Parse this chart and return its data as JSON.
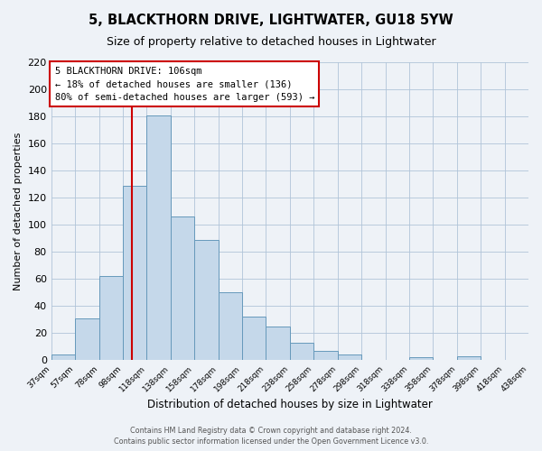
{
  "title": "5, BLACKTHORN DRIVE, LIGHTWATER, GU18 5YW",
  "subtitle": "Size of property relative to detached houses in Lightwater",
  "xlabel": "Distribution of detached houses by size in Lightwater",
  "ylabel": "Number of detached properties",
  "bar_heights": [
    4,
    31,
    62,
    129,
    181,
    106,
    89,
    50,
    32,
    25,
    13,
    7,
    4,
    0,
    0,
    2,
    0,
    3,
    0,
    0
  ],
  "tick_labels": [
    "37sqm",
    "57sqm",
    "78sqm",
    "98sqm",
    "118sqm",
    "138sqm",
    "158sqm",
    "178sqm",
    "198sqm",
    "218sqm",
    "238sqm",
    "258sqm",
    "278sqm",
    "298sqm",
    "318sqm",
    "338sqm",
    "358sqm",
    "378sqm",
    "398sqm",
    "418sqm",
    "438sqm"
  ],
  "n_bars": 20,
  "bar_color": "#c5d8ea",
  "bar_edge_color": "#6699bb",
  "vline_bar_index": 3.45,
  "vline_color": "#cc0000",
  "annotation_text": "5 BLACKTHORN DRIVE: 106sqm\n← 18% of detached houses are smaller (136)\n80% of semi-detached houses are larger (593) →",
  "annotation_box_color": "white",
  "annotation_box_edge": "#cc0000",
  "ylim": [
    0,
    220
  ],
  "yticks": [
    0,
    20,
    40,
    60,
    80,
    100,
    120,
    140,
    160,
    180,
    200,
    220
  ],
  "footer_line1": "Contains HM Land Registry data © Crown copyright and database right 2024.",
  "footer_line2": "Contains public sector information licensed under the Open Government Licence v3.0.",
  "bg_color": "#eef2f7",
  "grid_color": "#b0c4d8",
  "title_fontsize": 10.5,
  "subtitle_fontsize": 9,
  "ylabel_fontsize": 8,
  "xlabel_fontsize": 8.5
}
